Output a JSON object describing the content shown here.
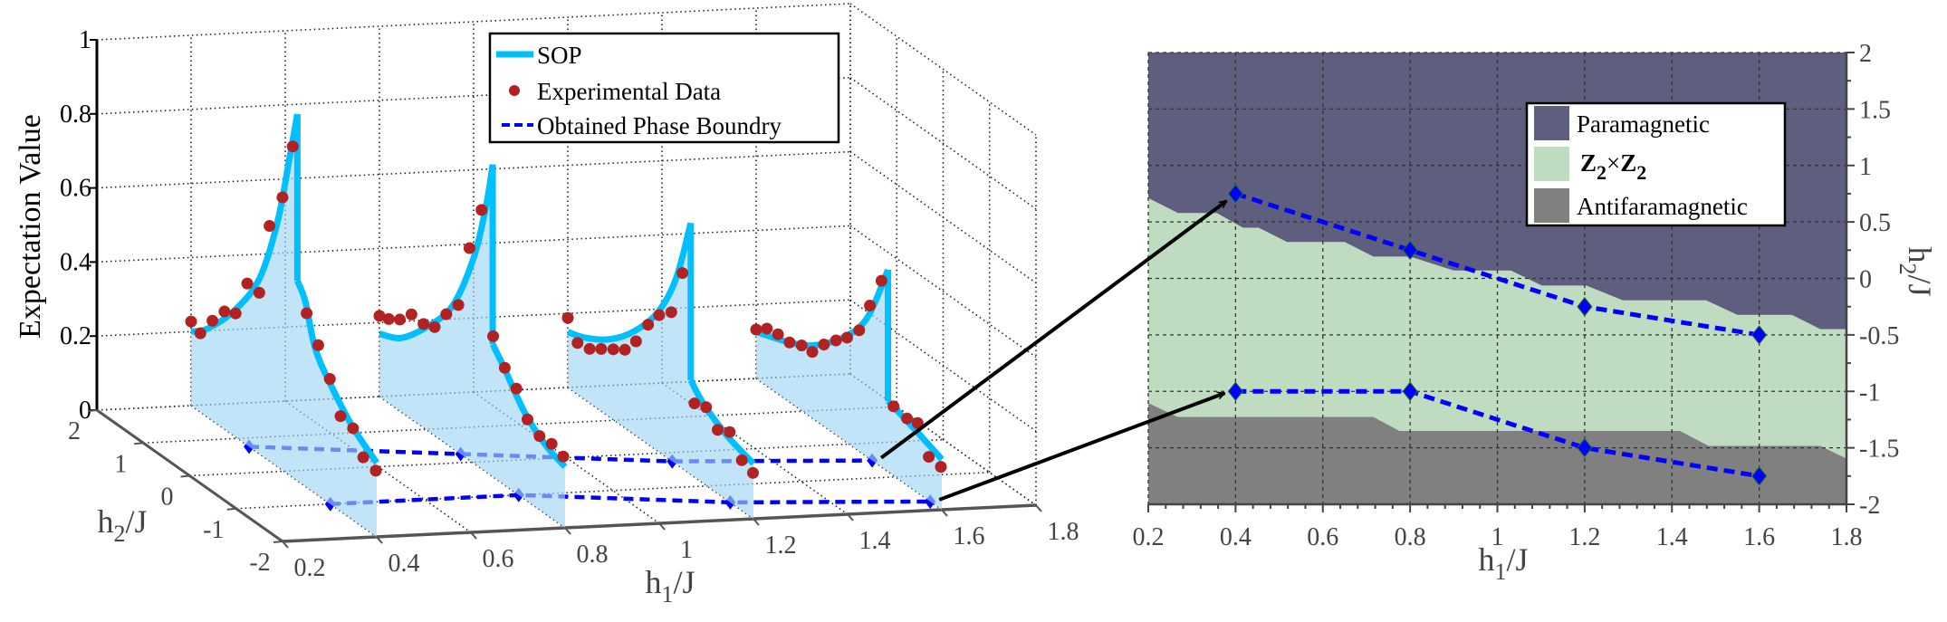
{
  "chart_data": [
    {
      "type": "line",
      "projection": "3d",
      "zlabel": "Expectation Value",
      "xlabel": {
        "main": "h",
        "sub": "1",
        "tail": "/J"
      },
      "ylabel": {
        "main": "h",
        "sub": "2",
        "tail": "/J"
      },
      "xlim": [
        0.2,
        1.8
      ],
      "ylim": [
        -2,
        2
      ],
      "zlim": [
        0,
        1
      ],
      "grid": true,
      "x_ticks": [
        "0.2",
        "0.4",
        "0.6",
        "0.8",
        "1",
        "1.2",
        "1.4",
        "1.6",
        "1.8"
      ],
      "y_ticks": [
        "-2",
        "-1",
        "0",
        "1",
        "2"
      ],
      "z_ticks": [
        "0",
        "0.2",
        "0.4",
        "0.6",
        "0.8",
        "1"
      ],
      "legend": {
        "position": "top",
        "entries": [
          {
            "label": "SOP",
            "style": "solid-line"
          },
          {
            "label": "Experimental Data",
            "style": "marker-dot"
          },
          {
            "label": "Obtained Phase Boundry",
            "style": "dashed-line"
          }
        ]
      },
      "colors": {
        "sop": "#00bfff",
        "fill": "#9fd6f4",
        "experimental": "#b22222",
        "boundary": "#0000ff"
      },
      "slices": [
        {
          "h1": 0.4,
          "sop": [
            [
              2,
              0.2
            ],
            [
              1.64,
              0.24
            ],
            [
              1.04,
              0.345
            ],
            [
              0.52,
              0.476
            ],
            [
              0.14,
              0.66
            ],
            [
              -0.12,
              0.855
            ],
            [
              -0.29,
              0.99
            ],
            [
              -0.29,
              0.54
            ],
            [
              -0.46,
              0.5
            ],
            [
              -0.68,
              0.39
            ],
            [
              -1.05,
              0.316
            ],
            [
              -1.5,
              0.249
            ],
            [
              -2,
              0.2
            ]
          ],
          "experimental": [
            [
              2.0,
              0.227
            ],
            [
              1.8,
              0.213
            ],
            [
              1.54,
              0.27
            ],
            [
              1.28,
              0.318
            ],
            [
              1.04,
              0.334
            ],
            [
              0.79,
              0.437
            ],
            [
              0.53,
              0.435
            ],
            [
              0.31,
              0.635
            ],
            [
              0.03,
              0.737
            ],
            [
              -0.19,
              0.894
            ],
            [
              -0.49,
              0.47
            ],
            [
              -0.74,
              0.406
            ],
            [
              -0.99,
              0.337
            ],
            [
              -1.22,
              0.257
            ],
            [
              -1.49,
              0.248
            ],
            [
              -1.71,
              0.189
            ],
            [
              -1.98,
              0.177
            ]
          ]
        },
        {
          "h1": 0.8,
          "sop": [
            [
              2,
              0.17
            ],
            [
              1.53,
              0.2
            ],
            [
              0.94,
              0.285
            ],
            [
              0.42,
              0.386
            ],
            [
              -0.035,
              0.557
            ],
            [
              -0.3,
              0.72
            ],
            [
              -0.44,
              0.843
            ],
            [
              -0.44,
              0.358
            ],
            [
              -0.69,
              0.315
            ],
            [
              -1.14,
              0.233
            ],
            [
              -1.6,
              0.185
            ],
            [
              -2,
              0.165
            ]
          ],
          "experimental": [
            [
              2.0,
              0.218
            ],
            [
              1.8,
              0.227
            ],
            [
              1.56,
              0.247
            ],
            [
              1.31,
              0.283
            ],
            [
              1.05,
              0.28
            ],
            [
              0.81,
              0.293
            ],
            [
              0.56,
              0.35
            ],
            [
              0.3,
              0.398
            ],
            [
              0.06,
              0.573
            ],
            [
              -0.2,
              0.699
            ],
            [
              -0.45,
              0.38
            ],
            [
              -0.7,
              0.317
            ],
            [
              -0.95,
              0.283
            ],
            [
              -1.19,
              0.221
            ],
            [
              -1.45,
              0.199
            ],
            [
              -1.71,
              0.201
            ],
            [
              -1.96,
              0.189
            ]
          ]
        },
        {
          "h1": 1.2,
          "sop": [
            [
              2,
              0.15
            ],
            [
              1.62,
              0.168
            ],
            [
              1.1,
              0.21
            ],
            [
              0.58,
              0.277
            ],
            [
              0.06,
              0.375
            ],
            [
              -0.33,
              0.5
            ],
            [
              -0.65,
              0.679
            ],
            [
              -0.65,
              0.255
            ],
            [
              -0.91,
              0.217
            ],
            [
              -1.43,
              0.174
            ],
            [
              -2,
              0.149
            ]
          ],
          "experimental": [
            [
              2.0,
              0.188
            ],
            [
              1.79,
              0.139
            ],
            [
              1.53,
              0.146
            ],
            [
              1.28,
              0.168
            ],
            [
              1.02,
              0.19
            ],
            [
              0.77,
              0.211
            ],
            [
              0.53,
              0.255
            ],
            [
              0.27,
              0.323
            ],
            [
              0.03,
              0.37
            ],
            [
              -0.23,
              0.401
            ],
            [
              -0.47,
              0.528
            ],
            [
              -0.73,
              0.199
            ],
            [
              -0.98,
              0.211
            ],
            [
              -1.23,
              0.172
            ],
            [
              -1.49,
              0.189
            ],
            [
              -1.75,
              0.136
            ],
            [
              -1.99,
              0.123
            ]
          ]
        },
        {
          "h1": 1.6,
          "sop": [
            [
              2,
              0.126
            ],
            [
              1.3,
              0.16
            ],
            [
              0.785,
              0.197
            ],
            [
              0.13,
              0.276
            ],
            [
              -0.39,
              0.375
            ],
            [
              -0.84,
              0.545
            ],
            [
              -0.84,
              0.191
            ],
            [
              -1.43,
              0.165
            ],
            [
              -2,
              0.136
            ]
          ],
          "experimental": [
            [
              2.0,
              0.132
            ],
            [
              1.77,
              0.155
            ],
            [
              1.53,
              0.161
            ],
            [
              1.28,
              0.161
            ],
            [
              1.02,
              0.176
            ],
            [
              0.79,
              0.179
            ],
            [
              0.54,
              0.221
            ],
            [
              0.28,
              0.255
            ],
            [
              0.04,
              0.284
            ],
            [
              -0.22,
              0.327
            ],
            [
              -0.45,
              0.414
            ],
            [
              -0.7,
              0.503
            ],
            [
              -0.96,
              0.187
            ],
            [
              -1.25,
              0.18
            ],
            [
              -1.48,
              0.188
            ],
            [
              -1.72,
              0.118
            ],
            [
              -1.98,
              0.114
            ]
          ]
        }
      ],
      "phase_boundaries": [
        {
          "points": [
            [
              0.4,
              0.75
            ],
            [
              0.8,
              0.25
            ],
            [
              1.2,
              -0.25
            ],
            [
              1.6,
              -0.5
            ]
          ]
        },
        {
          "points": [
            [
              0.4,
              -1
            ],
            [
              0.8,
              -1
            ],
            [
              1.2,
              -1.5
            ],
            [
              1.6,
              -1.75
            ]
          ]
        }
      ]
    },
    {
      "type": "area",
      "xlabel": {
        "main": "h",
        "sub": "1",
        "tail": "/J"
      },
      "ylabel": {
        "main": "h",
        "sub": "2",
        "tail": "/J"
      },
      "xlim": [
        0.2,
        1.8
      ],
      "ylim": [
        -2,
        2
      ],
      "grid": true,
      "y_axis_side": "right",
      "x_ticks": [
        "0.2",
        "0.4",
        "0.6",
        "0.8",
        "1",
        "1.2",
        "1.4",
        "1.6",
        "1.8"
      ],
      "y_ticks": [
        "-2",
        "-1.5",
        "-1",
        "-0.5",
        "0",
        "0.5",
        "1",
        "1.5",
        "2"
      ],
      "legend": {
        "position": "top-right",
        "entries": [
          {
            "label": "Paramagnetic",
            "color": "#5e5f7e"
          },
          {
            "label_parts": [
              "Z",
              "2",
              "×",
              "Z",
              "2"
            ],
            "color": "#c0dcc0"
          },
          {
            "label": "Antifaramagnetic",
            "color": "#808080"
          }
        ]
      },
      "region_boundaries": {
        "paramagnetic_z2": [
          [
            0.2,
            0.712
          ],
          [
            0.268,
            0.579
          ],
          [
            0.357,
            0.579
          ],
          [
            0.417,
            0.449
          ],
          [
            0.453,
            0.449
          ],
          [
            0.518,
            0.323
          ],
          [
            0.65,
            0.323
          ],
          [
            0.716,
            0.193
          ],
          [
            0.8,
            0.193
          ],
          [
            0.9,
            0.07
          ],
          [
            1.031,
            0.07
          ],
          [
            1.102,
            -0.063
          ],
          [
            1.204,
            -0.063
          ],
          [
            1.287,
            -0.193
          ],
          [
            1.478,
            -0.193
          ],
          [
            1.55,
            -0.323
          ],
          [
            1.675,
            -0.323
          ],
          [
            1.74,
            -0.449
          ],
          [
            1.8,
            -0.449
          ]
        ],
        "z2_antiferromagnetic": [
          [
            0.2,
            -1.105
          ],
          [
            0.268,
            -1.228
          ],
          [
            0.716,
            -1.228
          ],
          [
            0.775,
            -1.351
          ],
          [
            1.418,
            -1.351
          ],
          [
            1.484,
            -1.484
          ],
          [
            1.74,
            -1.484
          ],
          [
            1.8,
            -1.596
          ]
        ]
      },
      "phase_boundaries": [
        {
          "points": [
            [
              0.4,
              0.75
            ],
            [
              0.8,
              0.25
            ],
            [
              1.2,
              -0.25
            ],
            [
              1.6,
              -0.5
            ]
          ]
        },
        {
          "points": [
            [
              0.4,
              -1
            ],
            [
              0.8,
              -1
            ],
            [
              1.2,
              -1.5
            ],
            [
              1.6,
              -1.75
            ]
          ]
        }
      ],
      "boundary_color": "#0000ff"
    }
  ]
}
